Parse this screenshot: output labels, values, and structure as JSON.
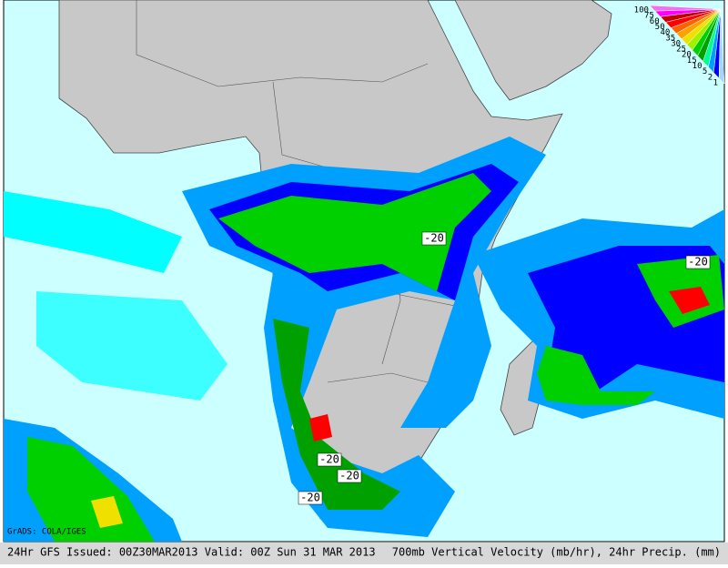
{
  "header": {
    "credit": "GrADS: COLA/IGES"
  },
  "footer": {
    "left": "24Hr GFS Issued: 00Z30MAR2013 Valid: 00Z Sun 31 MAR 2013",
    "right": "700mb Vertical Velocity (mb/hr), 24hr Precip. (mm)"
  },
  "contour_labels": [
    "-20",
    "-20",
    "-20",
    "-20",
    "-20"
  ],
  "legend": {
    "labels": [
      "100",
      "75",
      "60",
      "50",
      "40",
      "35",
      "30",
      "25",
      "20",
      "15",
      "10",
      "5",
      "2",
      "1"
    ],
    "colors": [
      "#f070f0",
      "#ff00ff",
      "#c00000",
      "#ff0000",
      "#ff6000",
      "#ffa000",
      "#f0e000",
      "#a0f000",
      "#00d000",
      "#00a000",
      "#00ff90",
      "#00a0ff",
      "#0000ff",
      "#a0d8ff"
    ]
  }
}
